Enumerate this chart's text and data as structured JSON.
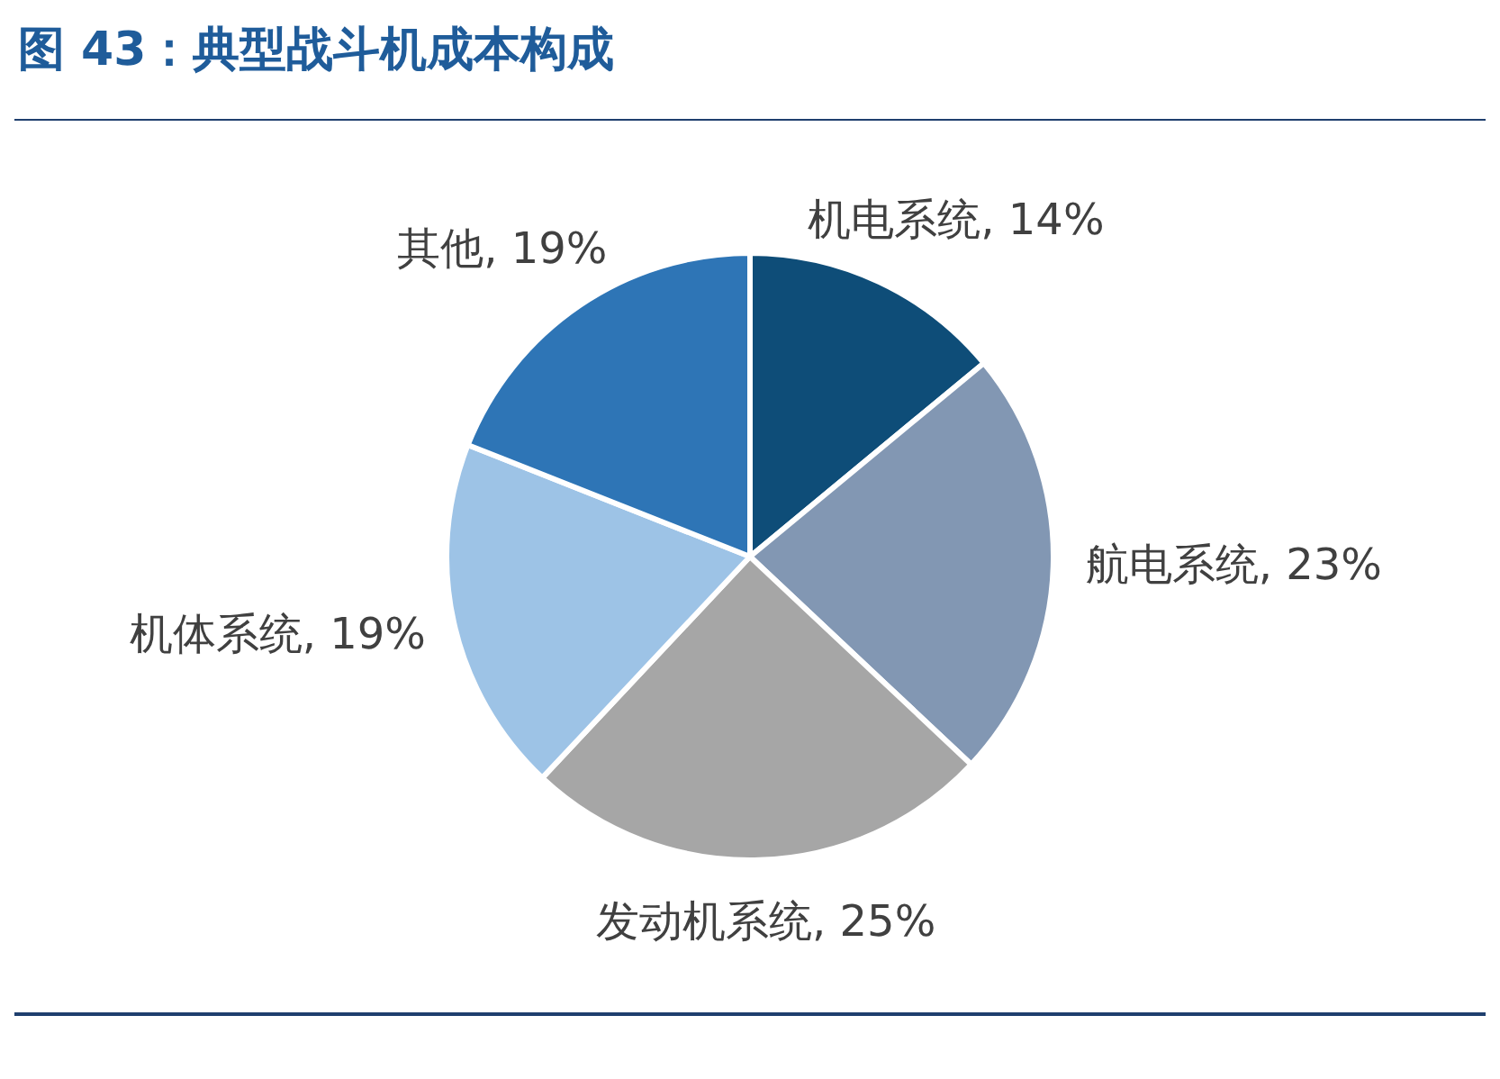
{
  "chart_data": {
    "type": "pie",
    "title": "图 43：典型战斗机成本构成",
    "categories": [
      "机电系统",
      "航电系统",
      "发动机系统",
      "机体系统",
      "其他"
    ],
    "values": [
      14,
      23,
      25,
      19,
      19
    ],
    "value_labels": [
      "14%",
      "23%",
      "25%",
      "19%",
      "19%"
    ],
    "colors": [
      "#0e4d78",
      "#8297b3",
      "#a6a6a6",
      "#9dc3e6",
      "#2e75b6"
    ],
    "legend": false
  }
}
